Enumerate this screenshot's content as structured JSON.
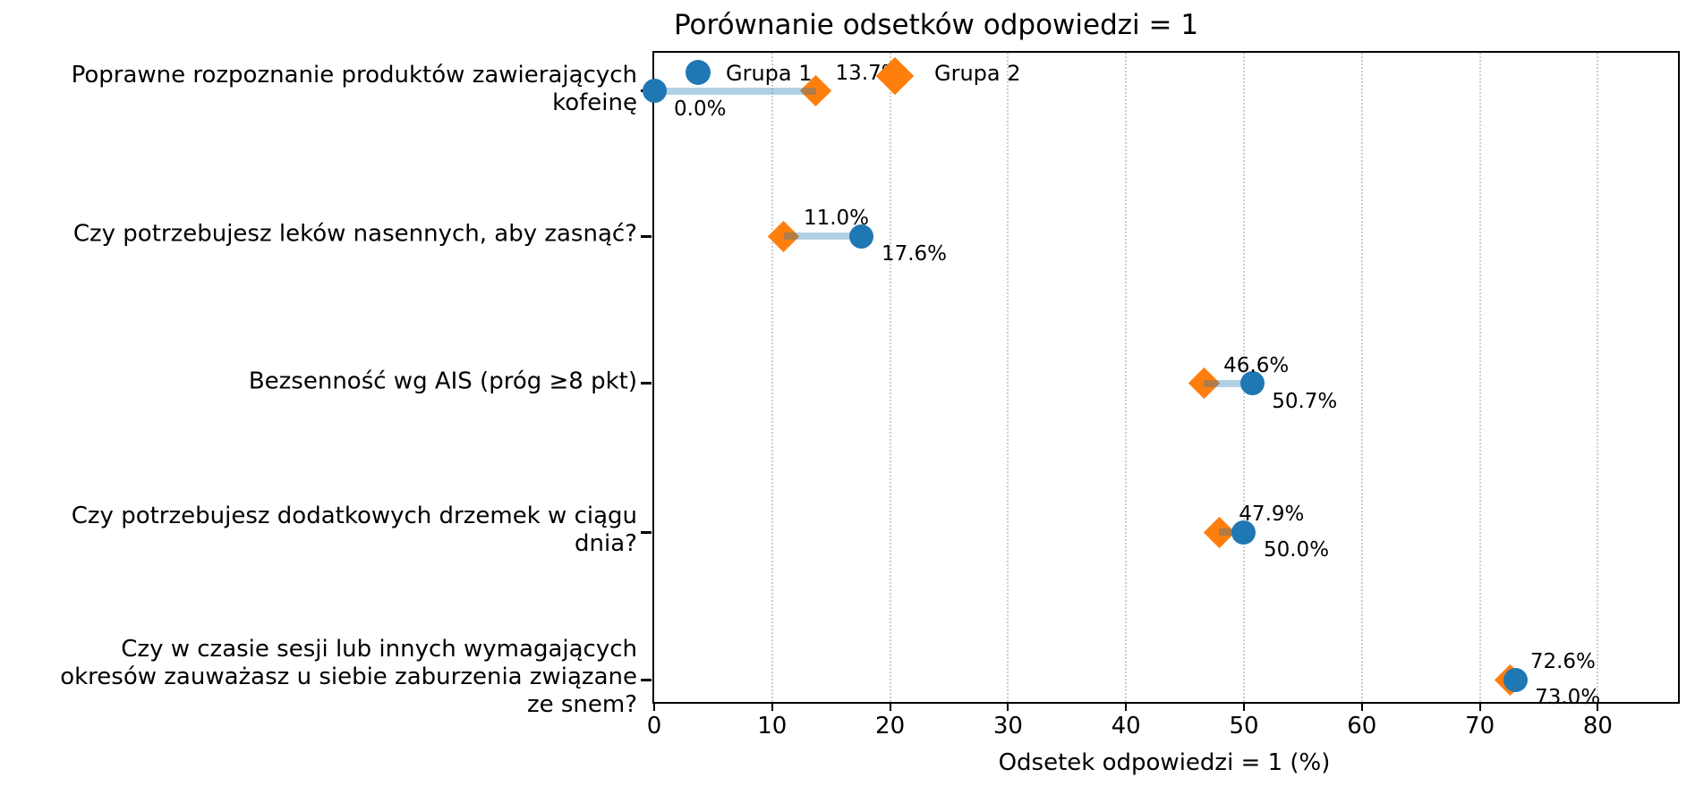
{
  "title": "Porównanie odsetków odpowiedzi = 1",
  "xlabel": "Odsetek odpowiedzi = 1 (%)",
  "legend": {
    "group1_label": "Grupa 1",
    "group2_label": "Grupa 2"
  },
  "colors": {
    "group1": "#1f77b4",
    "group2": "#ff7f0e",
    "connector": "rgba(31,119,180,0.35)",
    "grid": "#cccccc",
    "spine": "#000000",
    "text": "#000000"
  },
  "chart_data": {
    "type": "scatter",
    "subtype": "dumbbell-comparison",
    "title": "Porównanie odsetków odpowiedzi = 1",
    "xlabel": "Odsetek odpowiedzi = 1 (%)",
    "ylabel": "",
    "xlim": [
      0,
      86.8
    ],
    "xticks": [
      0,
      10,
      20,
      30,
      40,
      50,
      60,
      70,
      80
    ],
    "grid": "vertical-dotted",
    "legend_position": "upper-left-inside, frameless",
    "categories": [
      "Poprawne rozpoznanie produktów zawierających kofeinę",
      "Czy potrzebujesz leków nasennych, aby zasnąć?",
      "Bezsenność wg AIS (próg ≥8 pkt)",
      "Czy potrzebujesz dodatkowych drzemek w ciągu dnia?",
      "Czy w czasie sesji lub innych wymagających okresów zauważasz u siebie zaburzenia związane ze snem?"
    ],
    "category_lines": [
      [
        "Poprawne rozpoznanie produktów zawierających",
        "kofeinę"
      ],
      [
        "Czy potrzebujesz leków nasennych, aby zasnąć?"
      ],
      [
        "Bezsenność wg AIS (próg ≥8 pkt)"
      ],
      [
        "Czy potrzebujesz dodatkowych drzemek w ciągu",
        "dnia?"
      ],
      [
        "Czy w czasie sesji lub innych wymagających",
        "okresów zauważasz u siebie zaburzenia związane",
        "ze snem?"
      ]
    ],
    "series": [
      {
        "name": "Grupa 1",
        "marker": "circle",
        "color": "#1f77b4",
        "values": [
          0.0,
          17.6,
          50.7,
          50.0,
          73.0
        ]
      },
      {
        "name": "Grupa 2",
        "marker": "diamond",
        "color": "#ff7f0e",
        "values": [
          13.7,
          11.0,
          46.6,
          47.9,
          72.6
        ]
      }
    ],
    "value_labels": {
      "group1": [
        "0.0%",
        "17.6%",
        "50.7%",
        "50.0%",
        "73.0%"
      ],
      "group2": [
        "13.7%",
        "11.0%",
        "46.6%",
        "47.9%",
        "72.6%"
      ]
    }
  }
}
